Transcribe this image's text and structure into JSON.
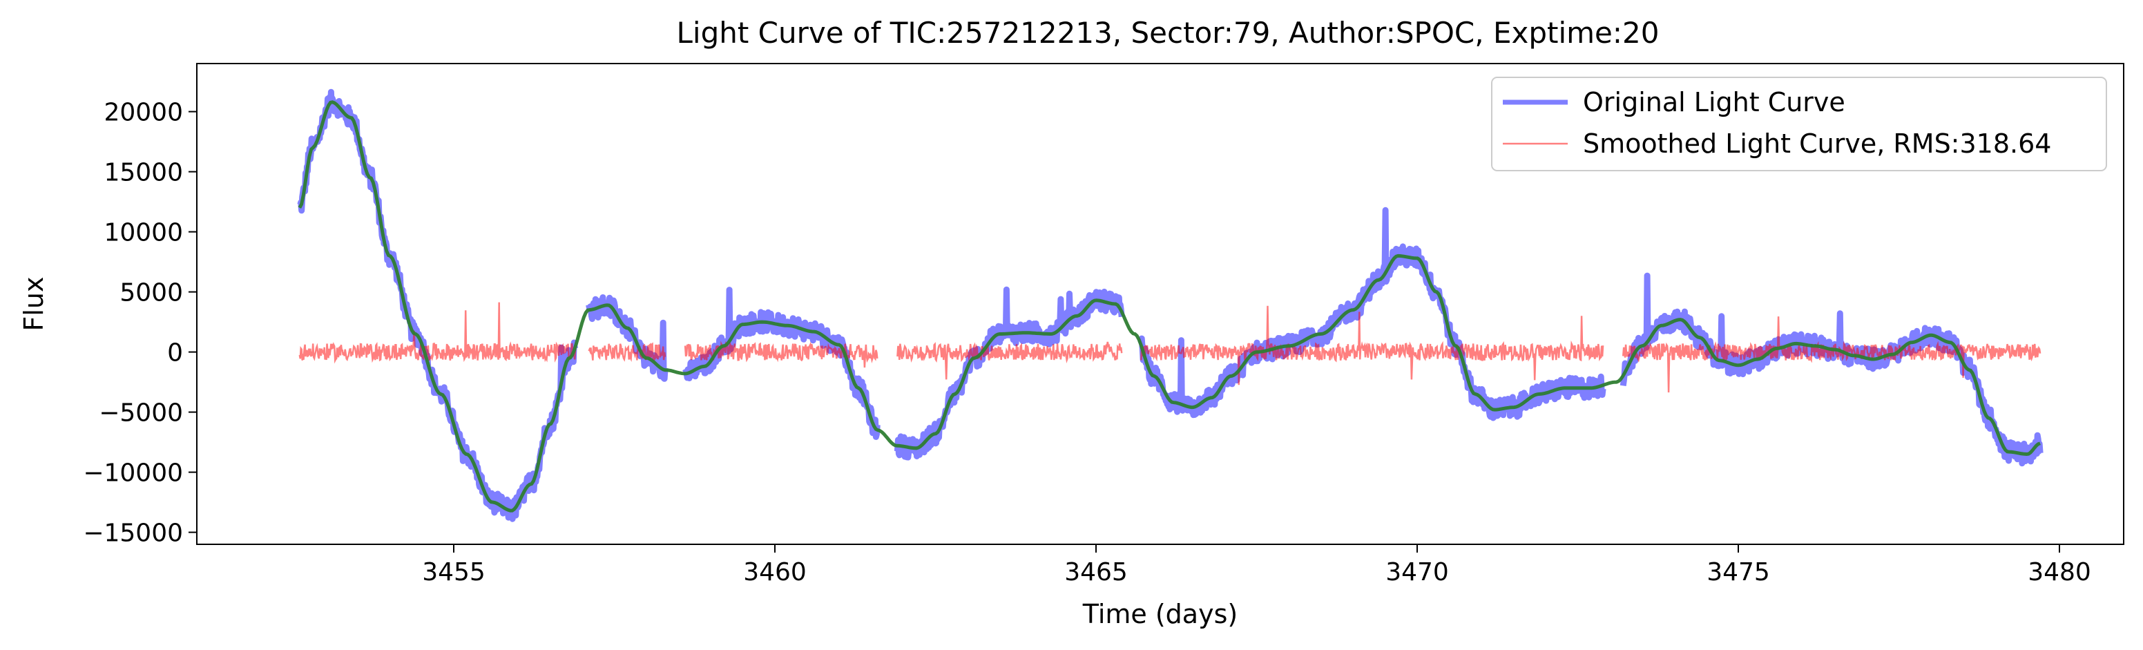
{
  "chart_data": {
    "type": "line",
    "title": "Light Curve of TIC:257212213, Sector:79, Author:SPOC, Exptime:20",
    "xlabel": "Time (days)",
    "ylabel": "Flux",
    "xlim": [
      3451.0,
      3481.0
    ],
    "ylim": [
      -16000,
      24000
    ],
    "x_ticks": [
      3455,
      3460,
      3465,
      3470,
      3475,
      3480
    ],
    "y_ticks": [
      -15000,
      -10000,
      -5000,
      0,
      5000,
      10000,
      15000,
      20000
    ],
    "grid": false,
    "legend_position": "top-right",
    "gaps": [
      [
        3456.9,
        3457.1
      ],
      [
        3458.3,
        3458.6
      ],
      [
        3461.6,
        3461.9
      ],
      [
        3465.4,
        3465.7
      ],
      [
        3472.9,
        3473.2
      ]
    ],
    "x": [
      3452.6,
      3452.8,
      3453.1,
      3453.4,
      3453.7,
      3454.0,
      3454.4,
      3454.8,
      3455.2,
      3455.6,
      3455.9,
      3456.2,
      3456.5,
      3456.8,
      3457.1,
      3457.4,
      3457.7,
      3458.0,
      3458.3,
      3458.6,
      3458.9,
      3459.2,
      3459.5,
      3459.8,
      3460.2,
      3460.6,
      3461.0,
      3461.3,
      3461.6,
      3461.9,
      3462.2,
      3462.5,
      3462.8,
      3463.1,
      3463.5,
      3463.9,
      3464.3,
      3464.7,
      3465.0,
      3465.3,
      3465.6,
      3465.9,
      3466.2,
      3466.5,
      3466.8,
      3467.1,
      3467.5,
      3468.0,
      3468.5,
      3469.0,
      3469.4,
      3469.7,
      3470.0,
      3470.3,
      3470.6,
      3470.9,
      3471.2,
      3471.5,
      3471.9,
      3472.3,
      3472.7,
      3473.1,
      3473.5,
      3473.8,
      3474.1,
      3474.4,
      3474.7,
      3475.0,
      3475.3,
      3475.6,
      3475.9,
      3476.2,
      3476.5,
      3476.8,
      3477.1,
      3477.4,
      3477.7,
      3478.0,
      3478.3,
      3478.6,
      3478.9,
      3479.2,
      3479.5,
      3479.7
    ],
    "series": [
      {
        "name": "Original Light Curve",
        "color": "#0000ff",
        "values": [
          12000,
          17000,
          20800,
          19500,
          14500,
          8000,
          1500,
          -3500,
          -8500,
          -12500,
          -13200,
          -11000,
          -6000,
          -500,
          3500,
          3900,
          2000,
          -500,
          -1500,
          -1800,
          -1200,
          500,
          2300,
          2500,
          2200,
          1700,
          600,
          -3000,
          -6500,
          -7800,
          -8000,
          -6800,
          -3500,
          -500,
          1500,
          1600,
          1500,
          3000,
          4300,
          4000,
          1500,
          -2000,
          -4200,
          -4600,
          -3800,
          -2000,
          0,
          500,
          1500,
          3500,
          6000,
          8000,
          7800,
          5000,
          500,
          -3500,
          -4800,
          -4600,
          -3500,
          -3000,
          -3000,
          -2500,
          500,
          2200,
          2700,
          1200,
          -700,
          -1100,
          -600,
          300,
          700,
          500,
          200,
          -300,
          -600,
          -200,
          800,
          1400,
          800,
          -1500,
          -5500,
          -8300,
          -8500,
          -7600
        ]
      },
      {
        "name": "Smoothed Light Curve, RMS:318.64",
        "color": "#ff0000",
        "values": [
          0,
          0,
          0,
          0,
          0,
          0,
          0,
          0,
          0,
          0,
          0,
          0,
          0,
          0,
          0,
          0,
          0,
          0,
          0,
          0,
          0,
          0,
          0,
          0,
          0,
          0,
          0,
          0,
          0,
          0,
          0,
          0,
          0,
          0,
          0,
          0,
          0,
          0,
          0,
          0,
          0,
          0,
          0,
          0,
          0,
          0,
          0,
          0,
          0,
          0,
          0,
          0,
          0,
          0,
          0,
          0,
          0,
          0,
          0,
          0,
          0,
          0,
          0,
          0,
          0,
          0,
          0,
          0,
          0,
          0,
          0,
          0,
          0,
          0,
          0,
          0,
          0,
          0,
          0,
          0,
          0,
          0,
          0,
          0
        ]
      }
    ],
    "trend": {
      "color": "#2e7d32"
    }
  }
}
